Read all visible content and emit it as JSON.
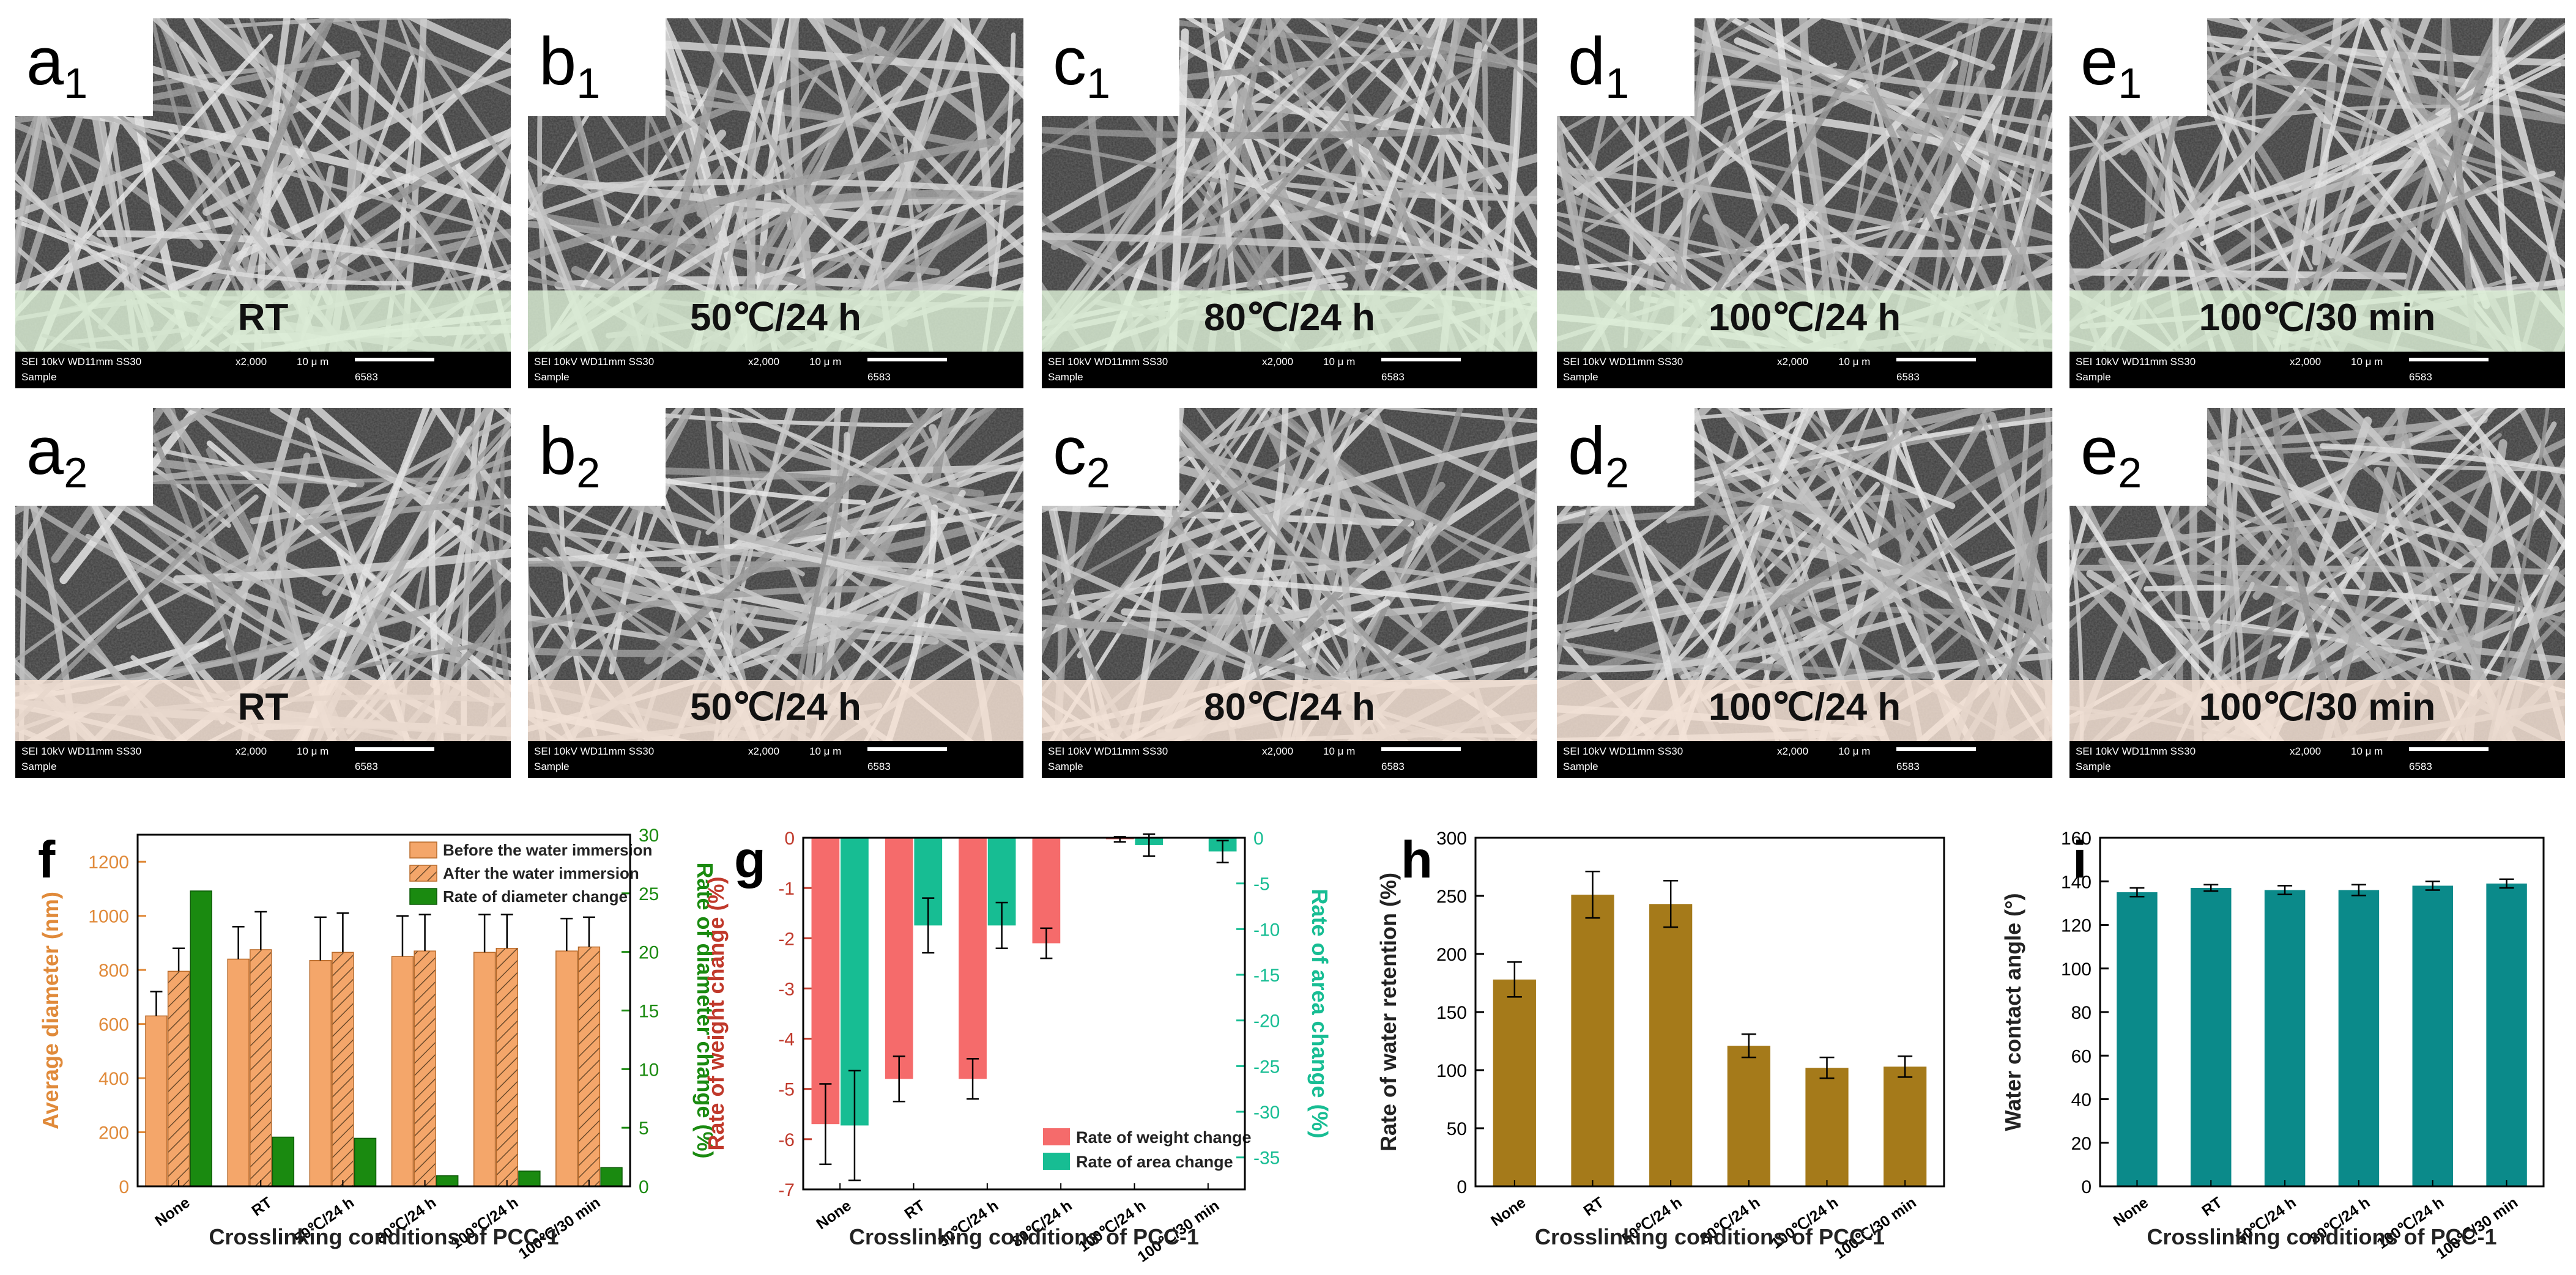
{
  "sem": {
    "footer_left_top": "SEI   10kV   WD11mm   SS30",
    "footer_mag": "x2,000",
    "footer_scale": "10 μ m",
    "footer_left_bottom": "Sample",
    "footer_id": "6583",
    "top_band_color": "#dcefd6",
    "bottom_band_color": "#f7e3d6",
    "panels": [
      {
        "letter": "a",
        "sub": "1",
        "label": "RT",
        "row": 0,
        "col": 0
      },
      {
        "letter": "b",
        "sub": "1",
        "label": "50℃/24 h",
        "row": 0,
        "col": 1
      },
      {
        "letter": "c",
        "sub": "1",
        "label": "80℃/24 h",
        "row": 0,
        "col": 2
      },
      {
        "letter": "d",
        "sub": "1",
        "label": "100℃/24 h",
        "row": 0,
        "col": 3
      },
      {
        "letter": "e",
        "sub": "1",
        "label": "100℃/30 min",
        "row": 0,
        "col": 4
      },
      {
        "letter": "a",
        "sub": "2",
        "label": "RT",
        "row": 1,
        "col": 0
      },
      {
        "letter": "b",
        "sub": "2",
        "label": "50℃/24 h",
        "row": 1,
        "col": 1
      },
      {
        "letter": "c",
        "sub": "2",
        "label": "80℃/24 h",
        "row": 1,
        "col": 2
      },
      {
        "letter": "d",
        "sub": "2",
        "label": "100℃/24 h",
        "row": 1,
        "col": 3
      },
      {
        "letter": "e",
        "sub": "2",
        "label": "100℃/30 min",
        "row": 1,
        "col": 4
      }
    ]
  },
  "chart_data": [
    {
      "panel": "f",
      "type": "bar",
      "categories": [
        "None",
        "RT",
        "50℃/24 h",
        "80℃/24 h",
        "100℃/24 h",
        "100℃/30 min"
      ],
      "xlabel": "Crosslinking conditions of PCC-1",
      "ylabel": "Average diameter (nm)",
      "y2label": "Rate of diameter change (%)",
      "ylim": [
        0,
        1300
      ],
      "yticks": [
        0,
        200,
        400,
        600,
        800,
        1000,
        1200
      ],
      "y2lim": [
        0,
        30
      ],
      "y2ticks": [
        0,
        5,
        10,
        15,
        20,
        25,
        30
      ],
      "legend_position": "top-right",
      "colors": {
        "before": "#f4a66a",
        "after": "#f4a66a",
        "rate": "#1a8a10"
      },
      "series": [
        {
          "name": "Before the water immersion",
          "axis": "left",
          "values": [
            630,
            840,
            835,
            850,
            865,
            870
          ],
          "errors": [
            90,
            120,
            160,
            150,
            140,
            120
          ]
        },
        {
          "name": "After the water immersion",
          "axis": "left",
          "values": [
            795,
            875,
            865,
            870,
            880,
            885
          ],
          "errors": [
            85,
            140,
            145,
            135,
            125,
            110
          ]
        },
        {
          "name": "Rate of diameter change",
          "axis": "right",
          "values": [
            25.2,
            4.2,
            4.1,
            0.9,
            1.3,
            1.6
          ]
        }
      ]
    },
    {
      "panel": "g",
      "type": "bar",
      "categories": [
        "None",
        "RT",
        "50℃/24 h",
        "80℃/24 h",
        "100℃/24 h",
        "100℃/30 min"
      ],
      "xlabel": "Crosslinking conditions of PCC-1",
      "ylabel": "Rate of weight change (%)",
      "y2label": "Rate of area change (%)",
      "ylim": [
        -7,
        0
      ],
      "yticks": [
        0,
        -1,
        -2,
        -3,
        -4,
        -5,
        -6,
        -7
      ],
      "y2lim": [
        -38.5,
        0
      ],
      "y2ticks": [
        0,
        -5,
        -10,
        -15,
        -20,
        -25,
        -30,
        -35
      ],
      "legend_position": "bottom-right",
      "colors": {
        "weight": "#f56b6b",
        "area": "#17bd93"
      },
      "series": [
        {
          "name": "Rate of weight change",
          "axis": "left",
          "values": [
            -5.7,
            -4.8,
            -4.8,
            -2.1,
            -0.03,
            0
          ],
          "errors": [
            0.8,
            0.45,
            0.4,
            0.3,
            0.05,
            0
          ]
        },
        {
          "name": "Rate of area change",
          "axis": "right",
          "values": [
            -31.5,
            -9.6,
            -9.6,
            0,
            -0.8,
            -1.5
          ],
          "errors": [
            6,
            3,
            2.5,
            0,
            1.2,
            1.2
          ]
        }
      ]
    },
    {
      "panel": "h",
      "type": "bar",
      "categories": [
        "None",
        "RT",
        "50℃/24 h",
        "80℃/24 h",
        "100℃/24 h",
        "100℃/30 min"
      ],
      "xlabel": "Crosslinking conditions of PCC-1",
      "ylabel": "Rate of water retention (%)",
      "ylim": [
        0,
        300
      ],
      "yticks": [
        0,
        50,
        100,
        150,
        200,
        250,
        300
      ],
      "color": "#a57a1a",
      "values": [
        178,
        251,
        243,
        121,
        102,
        103
      ],
      "errors": [
        15,
        20,
        20,
        10,
        9,
        9
      ]
    },
    {
      "panel": "i",
      "type": "bar",
      "categories": [
        "None",
        "RT",
        "50℃/24 h",
        "80℃/24 h",
        "100℃/24 h",
        "100℃/30 min"
      ],
      "xlabel": "Crosslinking conditions of PCC-1",
      "ylabel": "Water contact angle (°)",
      "ylim": [
        0,
        160
      ],
      "yticks": [
        0,
        20,
        40,
        60,
        80,
        100,
        120,
        140,
        160
      ],
      "color": "#0b8a8a",
      "values": [
        135,
        137,
        136,
        136,
        138,
        139
      ],
      "errors": [
        2,
        1.5,
        2,
        2.5,
        2,
        2
      ]
    }
  ]
}
